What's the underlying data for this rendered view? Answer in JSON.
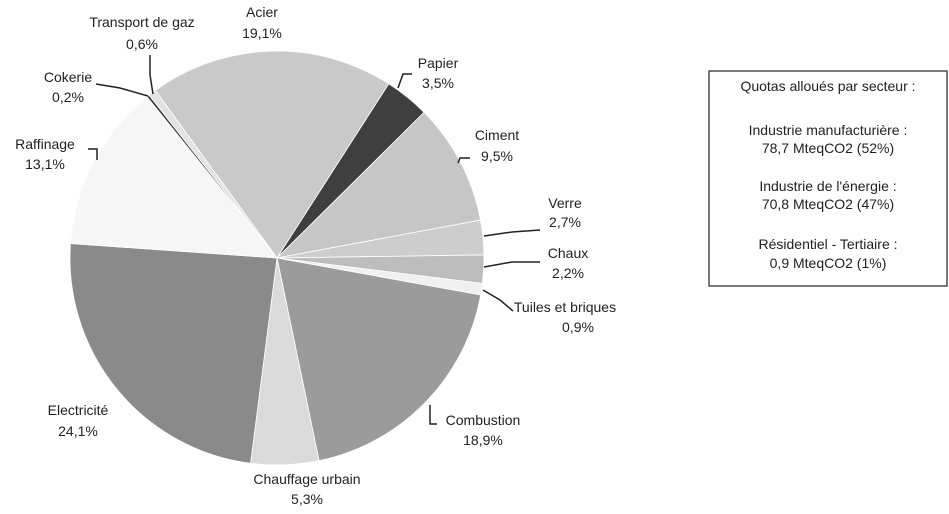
{
  "chart_data": {
    "type": "pie",
    "categories": [
      "Acier",
      "Papier",
      "Ciment",
      "Verre",
      "Chaux",
      "Tuiles et briques",
      "Combustion",
      "Chauffage urbain",
      "Electricité",
      "Raffinage",
      "Cokerie",
      "Transport de gaz"
    ],
    "values": [
      19.1,
      3.5,
      9.5,
      2.7,
      2.2,
      0.9,
      18.9,
      5.3,
      24.1,
      13.1,
      0.2,
      0.6
    ],
    "value_labels": [
      "19,1%",
      "3,5%",
      "9,5%",
      "2,7%",
      "2,2%",
      "0,9%",
      "18,9%",
      "5,3%",
      "24,1%",
      "13,1%",
      "0,2%",
      "0,6%"
    ],
    "colors": [
      "#c9c9c9",
      "#3f3f3f",
      "#c6c6c6",
      "#cdcdcd",
      "#bdbdbd",
      "#f0f0f0",
      "#9b9b9b",
      "#dadada",
      "#8a8a8a",
      "#f6f6f6",
      "#333333",
      "#e2e2e2"
    ],
    "annotation_box": {
      "title": "Quotas alloués par secteur :",
      "items": [
        {
          "label": "Industrie manufacturière :",
          "value": "78,7 MteqCO2 (52%)"
        },
        {
          "label": "Industrie de l'énergie :",
          "value": "70,8 MteqCO2 (47%)"
        },
        {
          "label": "Résidentiel - Tertiaire :",
          "value": "0,9 MteqCO2 (1%)"
        }
      ]
    }
  }
}
